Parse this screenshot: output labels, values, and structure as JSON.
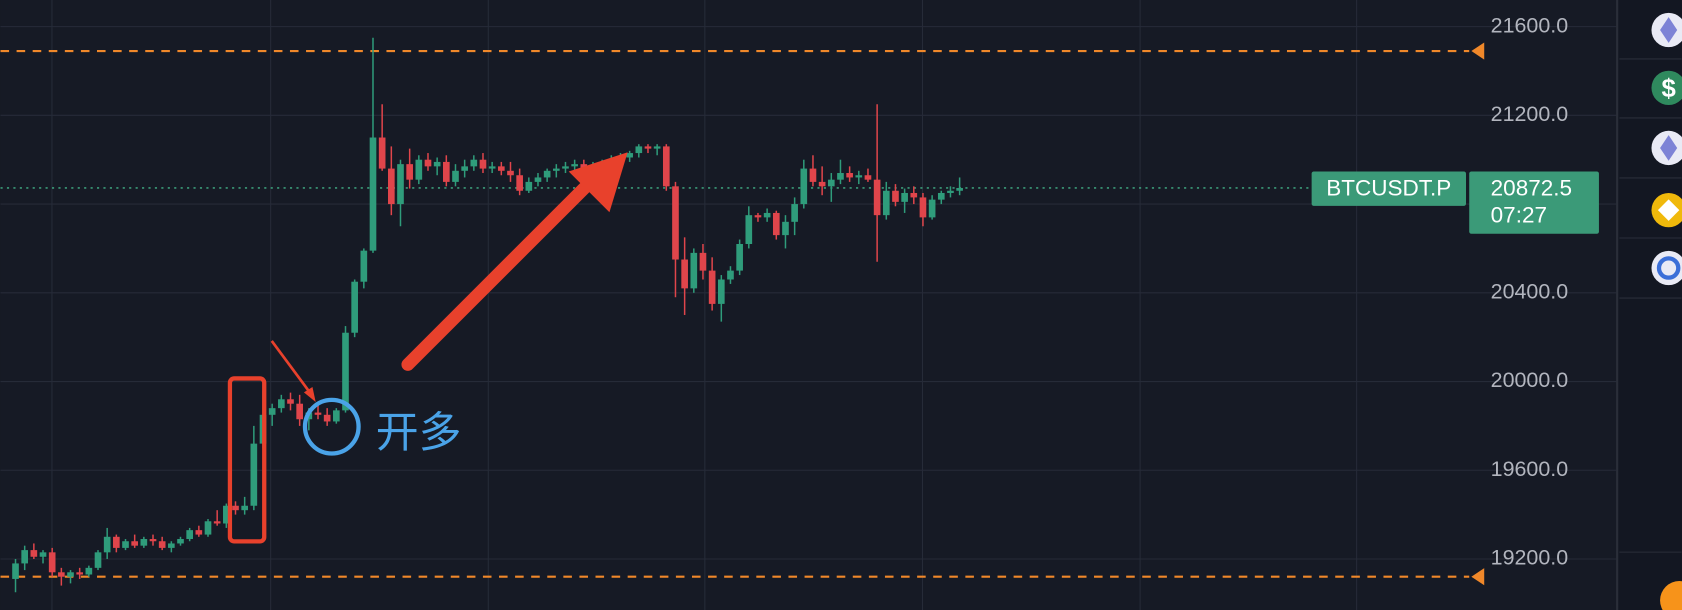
{
  "chart_data": {
    "type": "candlestick",
    "symbol": "BTCUSDT.P",
    "last_price": 20872.5,
    "countdown": "07:27",
    "annotation": "开多",
    "up_color": "#2f9c7b",
    "down_color": "#e0454b",
    "last_price_color": "#3b9a78",
    "level_color": "#f0882a",
    "levels": [
      21490,
      19120
    ],
    "ylim": [
      18970,
      21720
    ],
    "yticks": [
      {
        "value": 19200,
        "label": "19200.0"
      },
      {
        "value": 19600,
        "label": "19600.0"
      },
      {
        "value": 20000,
        "label": "20000.0"
      },
      {
        "value": 20400,
        "label": "20400.0"
      },
      {
        "value": 20800,
        "label": "20800.0"
      },
      {
        "value": 21200,
        "label": "21200.0"
      },
      {
        "value": 21600,
        "label": "21600.0"
      }
    ],
    "grid": true,
    "open": [
      19110,
      19180,
      19240,
      19210,
      19230,
      19140,
      19120,
      19140,
      19130,
      19160,
      19230,
      19300,
      19250,
      19280,
      19260,
      19290,
      19280,
      19250,
      19270,
      19290,
      19330,
      19310,
      19370,
      19360,
      19440,
      19420,
      19440,
      19720,
      19850,
      19880,
      19920,
      19900,
      19830,
      19860,
      19850,
      19820,
      19870,
      20220,
      20450,
      20590,
      21100,
      20960,
      20800,
      20980,
      20910,
      21000,
      20970,
      20990,
      20900,
      20950,
      20970,
      21000,
      20960,
      20970,
      20950,
      20930,
      20860,
      20900,
      20920,
      20950,
      20960,
      20970,
      20980,
      20960,
      20970,
      20990,
      21000,
      21010,
      21030,
      21060,
      21050,
      21060,
      20880,
      20550,
      20420,
      20580,
      20500,
      20350,
      20460,
      20500,
      20620,
      20750,
      20740,
      20760,
      20660,
      20720,
      20800,
      20960,
      20900,
      20880,
      20910,
      20940,
      20920,
      20930,
      20910,
      20750,
      20860,
      20810,
      20850,
      20830,
      20740,
      20820,
      20850,
      20860
    ],
    "high": [
      19200,
      19260,
      19270,
      19240,
      19250,
      19160,
      19150,
      19160,
      19170,
      19240,
      19340,
      19310,
      19290,
      19310,
      19300,
      19310,
      19300,
      19280,
      19300,
      19340,
      19350,
      19380,
      19420,
      19450,
      19460,
      19480,
      19800,
      19960,
      19900,
      19940,
      19950,
      19940,
      19880,
      19900,
      19880,
      19880,
      20250,
      20460,
      20600,
      21550,
      21250,
      21060,
      21000,
      21050,
      21020,
      21030,
      21010,
      21020,
      20980,
      21000,
      21020,
      21030,
      20990,
      20990,
      20990,
      20960,
      20920,
      20940,
      20960,
      20980,
      20990,
      21000,
      21000,
      20990,
      21000,
      21020,
      21030,
      21040,
      21070,
      21070,
      21070,
      21070,
      20900,
      20650,
      20600,
      20620,
      20560,
      20480,
      20520,
      20640,
      20790,
      20760,
      20780,
      20770,
      20750,
      20830,
      21000,
      21020,
      20970,
      20940,
      21000,
      20970,
      20950,
      20960,
      21250,
      20900,
      20890,
      20870,
      20880,
      20850,
      20840,
      20860,
      20880,
      20920
    ],
    "low": [
      19050,
      19150,
      19200,
      19180,
      19120,
      19080,
      19090,
      19110,
      19120,
      19150,
      19200,
      19230,
      19240,
      19250,
      19250,
      19260,
      19240,
      19230,
      19260,
      19280,
      19300,
      19300,
      19350,
      19340,
      19400,
      19400,
      19420,
      19700,
      19800,
      19860,
      19870,
      19800,
      19780,
      19830,
      19800,
      19810,
      19860,
      20200,
      20420,
      20580,
      20950,
      20750,
      20700,
      20870,
      20890,
      20950,
      20930,
      20880,
      20880,
      20920,
      20950,
      20940,
      20940,
      20930,
      20900,
      20840,
      20850,
      20880,
      20900,
      20920,
      20940,
      20950,
      20950,
      20940,
      20950,
      20970,
      20980,
      20990,
      21010,
      21030,
      21020,
      20860,
      20380,
      20300,
      20400,
      20460,
      20320,
      20270,
      20440,
      20480,
      20600,
      20720,
      20720,
      20640,
      20600,
      20660,
      20780,
      20880,
      20840,
      20810,
      20890,
      20900,
      20890,
      20900,
      20540,
      20730,
      20790,
      20760,
      20800,
      20700,
      20730,
      20800,
      20830,
      20840
    ],
    "close": [
      19180,
      19240,
      19210,
      19230,
      19140,
      19120,
      19140,
      19130,
      19160,
      19230,
      19300,
      19250,
      19280,
      19260,
      19290,
      19280,
      19250,
      19270,
      19290,
      19330,
      19310,
      19370,
      19360,
      19440,
      19420,
      19440,
      19720,
      19850,
      19880,
      19920,
      19900,
      19830,
      19860,
      19850,
      19820,
      19870,
      20220,
      20450,
      20590,
      21100,
      20960,
      20800,
      20980,
      20910,
      21000,
      20970,
      20990,
      20900,
      20950,
      20970,
      21000,
      20960,
      20970,
      20950,
      20930,
      20860,
      20900,
      20920,
      20950,
      20960,
      20970,
      20980,
      20960,
      20970,
      20990,
      21000,
      21010,
      21030,
      21060,
      21050,
      21060,
      20880,
      20550,
      20420,
      20580,
      20500,
      20350,
      20460,
      20500,
      20620,
      20750,
      20740,
      20760,
      20660,
      20720,
      20800,
      20960,
      20900,
      20880,
      20910,
      20940,
      20920,
      20930,
      20910,
      20750,
      20860,
      20810,
      20850,
      20830,
      20740,
      20820,
      20850,
      20860,
      20872.5
    ]
  },
  "sidebar": {
    "symbols": [
      "$"
    ]
  }
}
